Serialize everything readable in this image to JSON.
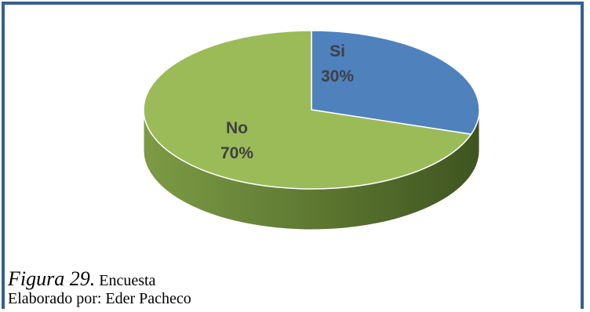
{
  "chart_data": {
    "type": "pie",
    "title": "",
    "categories": [
      "Si",
      "No"
    ],
    "values": [
      30,
      70
    ],
    "value_labels": [
      "30%",
      "70%"
    ],
    "colors": [
      "#4f81bd",
      "#9bbb59"
    ],
    "side_colors": [
      "#2f4f78",
      "#5f7a33"
    ]
  },
  "caption": {
    "figure": "Figura 29.",
    "text": "Encuesta",
    "author": "Elaborado por: Eder Pacheco"
  },
  "colors": {
    "border": "#36608f"
  }
}
